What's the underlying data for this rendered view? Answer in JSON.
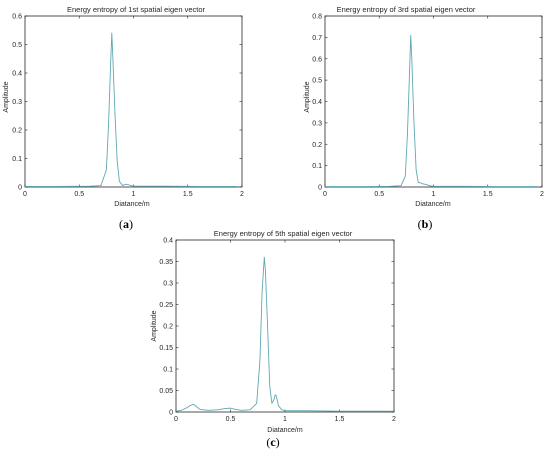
{
  "chart_data": [
    {
      "type": "line",
      "title": "Energy entropy of 1st spatial eigen vector",
      "xlabel": "Diatance/m",
      "ylabel": "Amplitude",
      "xlim": [
        0,
        2
      ],
      "ylim": [
        0,
        0.6
      ],
      "xticks": [
        "0",
        "0.5",
        "1",
        "1.5",
        "2"
      ],
      "yticks": [
        "0",
        "0.1",
        "0.2",
        "0.3",
        "0.4",
        "0.5",
        "0.6"
      ],
      "grid": false,
      "caption": "(a)",
      "series": [
        {
          "x": [
            0,
            0.3,
            0.6,
            0.7,
            0.75,
            0.77,
            0.79,
            0.8,
            0.81,
            0.83,
            0.85,
            0.87,
            0.9,
            0.93,
            0.97,
            1.0,
            1.3,
            1.6,
            1.95
          ],
          "y": [
            0.002,
            0.002,
            0.003,
            0.005,
            0.06,
            0.22,
            0.44,
            0.54,
            0.45,
            0.25,
            0.09,
            0.02,
            0.005,
            0.01,
            0.006,
            0.003,
            0.003,
            0.002,
            0.002
          ]
        }
      ]
    },
    {
      "type": "line",
      "title": "Energy entropy of 3rd spatial eigen vector",
      "xlabel": "Diatance/m",
      "ylabel": "Amplitude",
      "xlim": [
        0,
        2
      ],
      "ylim": [
        0,
        0.8
      ],
      "xticks": [
        "0",
        "0.5",
        "1",
        "1.5",
        "2"
      ],
      "yticks": [
        "0",
        "0.1",
        "0.2",
        "0.3",
        "0.4",
        "0.5",
        "0.6",
        "0.7",
        "0.8"
      ],
      "grid": false,
      "caption": "(b)",
      "series": [
        {
          "x": [
            0,
            0.3,
            0.6,
            0.7,
            0.74,
            0.76,
            0.78,
            0.79,
            0.8,
            0.82,
            0.84,
            0.86,
            0.88,
            0.9,
            0.93,
            0.97,
            1.0,
            1.3,
            1.6,
            1.95
          ],
          "y": [
            0.002,
            0.002,
            0.003,
            0.006,
            0.05,
            0.25,
            0.55,
            0.71,
            0.6,
            0.3,
            0.08,
            0.02,
            0.02,
            0.015,
            0.012,
            0.005,
            0.003,
            0.003,
            0.002,
            0.002
          ]
        }
      ]
    },
    {
      "type": "line",
      "title": "Energy entropy of 5th spatial eigen vector",
      "xlabel": "Diatance/m",
      "ylabel": "Amplitude",
      "xlim": [
        0,
        2
      ],
      "ylim": [
        0,
        0.4
      ],
      "xticks": [
        "0",
        "0.5",
        "1",
        "1.5",
        "2"
      ],
      "yticks": [
        "0",
        "0.05",
        "0.1",
        "0.15",
        "0.2",
        "0.25",
        "0.3",
        "0.35",
        "0.4"
      ],
      "grid": false,
      "caption": "(c)",
      "series": [
        {
          "x": [
            0,
            0.05,
            0.1,
            0.13,
            0.16,
            0.19,
            0.22,
            0.3,
            0.38,
            0.45,
            0.5,
            0.55,
            0.6,
            0.68,
            0.74,
            0.77,
            0.79,
            0.81,
            0.82,
            0.84,
            0.86,
            0.88,
            0.9,
            0.91,
            0.92,
            0.94,
            0.97,
            1.0,
            1.05,
            1.2,
            1.5,
            1.8,
            2.0
          ],
          "y": [
            0.002,
            0.004,
            0.01,
            0.015,
            0.018,
            0.012,
            0.006,
            0.004,
            0.005,
            0.008,
            0.009,
            0.006,
            0.004,
            0.005,
            0.02,
            0.12,
            0.28,
            0.36,
            0.33,
            0.2,
            0.06,
            0.02,
            0.03,
            0.04,
            0.037,
            0.015,
            0.005,
            0.003,
            0.003,
            0.003,
            0.002,
            0.002,
            0.002
          ]
        }
      ]
    }
  ],
  "colors": {
    "series": "#5fa8b3",
    "axis": "#262626"
  }
}
